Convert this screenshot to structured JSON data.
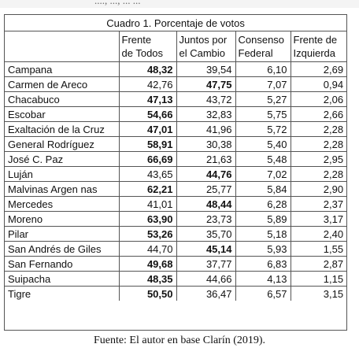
{
  "table": {
    "caption": "Cuadro 1. Porcentaje de votos",
    "columns": [
      {
        "line1": "Frente",
        "line2": "de Todos"
      },
      {
        "line1": "Juntos por",
        "line2": "el Cambio"
      },
      {
        "line1": "Consenso",
        "line2": "Federal"
      },
      {
        "line1": "Frente de",
        "line2": "Izquierda"
      }
    ],
    "rows": [
      {
        "name": "Campana",
        "values": [
          "48,32",
          "39,54",
          "6,10",
          "2,69"
        ],
        "bold": 0
      },
      {
        "name": "Carmen de Areco",
        "values": [
          "42,76",
          "47,75",
          "7,07",
          "0,94"
        ],
        "bold": 1
      },
      {
        "name": "Chacabuco",
        "values": [
          "47,13",
          "43,72",
          "5,27",
          "2,06"
        ],
        "bold": 0
      },
      {
        "name": "Escobar",
        "values": [
          "54,66",
          "32,83",
          "5,75",
          "2,66"
        ],
        "bold": 0
      },
      {
        "name": "Exaltación de la Cruz",
        "values": [
          "47,01",
          "41,96",
          "5,72",
          "2,28"
        ],
        "bold": 0
      },
      {
        "name": "General Rodríguez",
        "values": [
          "58,91",
          "30,38",
          "5,40",
          "2,28"
        ],
        "bold": 0
      },
      {
        "name": "José C. Paz",
        "values": [
          "66,69",
          "21,63",
          "5,48",
          "2,95"
        ],
        "bold": 0
      },
      {
        "name": "Luján",
        "values": [
          "43,65",
          "44,76",
          "7,02",
          "2,28"
        ],
        "bold": 1
      },
      {
        "name": "Malvinas Argen nas",
        "values": [
          "62,21",
          "25,77",
          "5,84",
          "2,90"
        ],
        "bold": 0
      },
      {
        "name": "Mercedes",
        "values": [
          "41,01",
          "48,44",
          "6,28",
          "2,37"
        ],
        "bold": 1
      },
      {
        "name": "Moreno",
        "values": [
          "63,90",
          "23,73",
          "5,89",
          "3,17"
        ],
        "bold": 0
      },
      {
        "name": "Pilar",
        "values": [
          "53,26",
          "35,70",
          "5,18",
          "2,40"
        ],
        "bold": 0
      },
      {
        "name": "San Andrés de Giles",
        "values": [
          "44,70",
          "45,14",
          "5,93",
          "1,55"
        ],
        "bold": 1
      },
      {
        "name": "San Fernando",
        "values": [
          "49,68",
          "37,77",
          "6,83",
          "2,87"
        ],
        "bold": 0
      },
      {
        "name": "Suipacha",
        "values": [
          "48,35",
          "44,66",
          "4,13",
          "1,15"
        ],
        "bold": 0
      },
      {
        "name": "Tigre",
        "values": [
          "50,50",
          "36,47",
          "6,57",
          "3,15"
        ],
        "bold": 0
      }
    ]
  },
  "source": "Fuente: El autor en base Clarín (2019).",
  "cutoff_text": "...., ..., ... ..."
}
